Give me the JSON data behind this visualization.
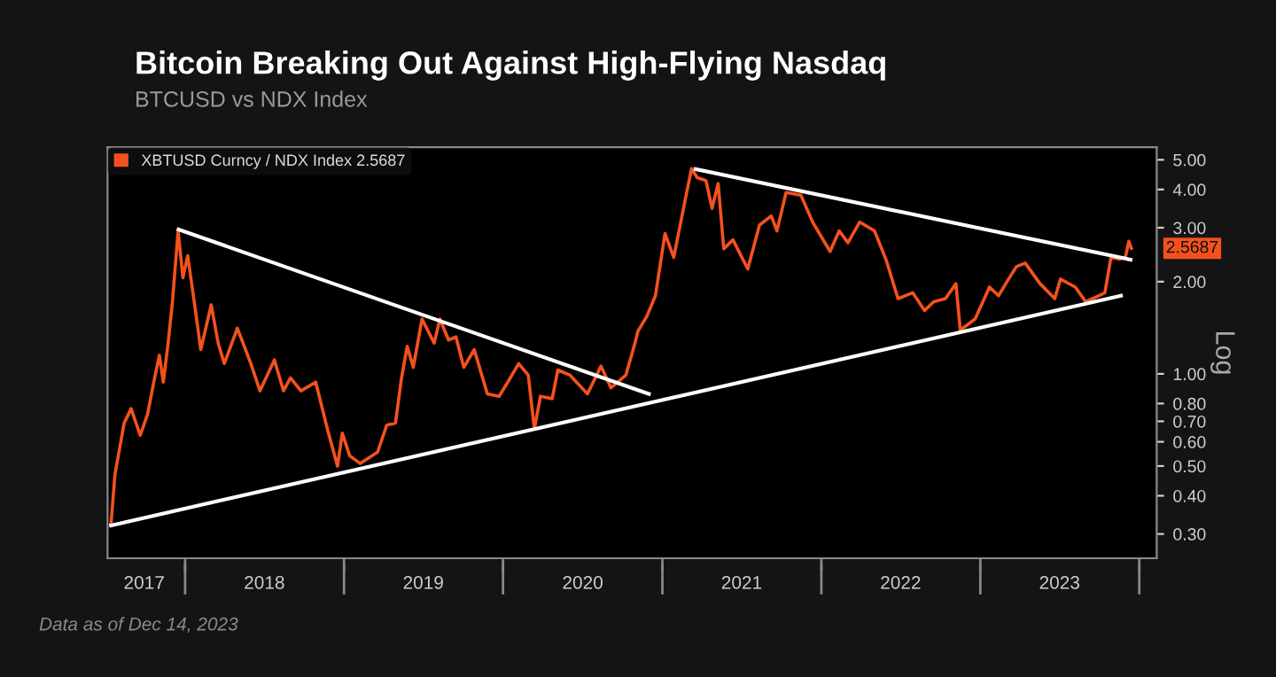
{
  "chart_data": {
    "type": "line",
    "title": "Bitcoin Breaking Out Against High-Flying Nasdaq",
    "subtitle": "BTCUSD vs NDX Index",
    "ylabel": "Log",
    "annotations": [
      "Data as of Dec 14, 2023",
      {
        "text": "2.5687",
        "x": "2023-12-14",
        "y": 2.5687
      }
    ],
    "log": true,
    "grid": false,
    "legend": "top left",
    "marker": "none",
    "line_style": "solid",
    "xlim": [
      "2017-07-07",
      "2024-02-10"
    ],
    "ylim": [
      0.25,
      5.5
    ],
    "xticks": [
      {
        "value": "2018-01-01",
        "label": null
      },
      {
        "value": "2019-01-01",
        "label": null
      },
      {
        "value": "2020-01-01",
        "label": null
      },
      {
        "value": "2021-01-01",
        "label": null
      },
      {
        "value": "2022-01-01",
        "label": null
      },
      {
        "value": "2023-01-01",
        "label": null
      },
      {
        "value": "2024-01-01",
        "label": null
      },
      {
        "value": "2017-09-29",
        "label": "2017"
      },
      {
        "value": "2018-07-02",
        "label": "2018"
      },
      {
        "value": "2019-07-02",
        "label": "2019"
      },
      {
        "value": "2020-07-02",
        "label": "2020"
      },
      {
        "value": "2021-07-02",
        "label": "2021"
      },
      {
        "value": "2022-07-02",
        "label": "2022"
      },
      {
        "value": "2023-07-02",
        "label": "2023"
      }
    ],
    "yticks": [
      {
        "value": 0.3,
        "label": "0.30"
      },
      {
        "value": 0.4,
        "label": "0.40"
      },
      {
        "value": 0.5,
        "label": "0.50"
      },
      {
        "value": 0.6,
        "label": "0.60"
      },
      {
        "value": 0.7,
        "label": "0.70"
      },
      {
        "value": 0.8,
        "label": "0.80"
      },
      {
        "value": 1,
        "label": "1.00"
      },
      {
        "value": 2,
        "label": "2.00"
      },
      {
        "value": 3,
        "label": "3.00"
      },
      {
        "value": 4,
        "label": "4.00"
      },
      {
        "value": 5,
        "label": "5.00"
      }
    ],
    "series": [
      {
        "name": "XBTUSD Curncy / NDX Index 2.5687",
        "color": "#f4511e",
        "x": [
          "2017-07-15",
          "2017-07-24",
          "2017-08-14",
          "2017-08-30",
          "2017-09-20",
          "2017-10-07",
          "2017-10-23",
          "2017-11-03",
          "2017-11-12",
          "2017-11-23",
          "2017-12-03",
          "2017-12-16",
          "2017-12-27",
          "2018-01-07",
          "2018-01-23",
          "2018-02-06",
          "2018-03-02",
          "2018-03-18",
          "2018-04-01",
          "2018-05-01",
          "2018-06-01",
          "2018-06-22",
          "2018-07-25",
          "2018-08-15",
          "2018-08-31",
          "2018-09-24",
          "2018-10-28",
          "2018-11-25",
          "2018-12-17",
          "2018-12-28",
          "2019-01-14",
          "2019-02-07",
          "2019-03-19",
          "2019-04-09",
          "2019-04-29",
          "2019-05-13",
          "2019-05-26",
          "2019-06-09",
          "2019-06-29",
          "2019-07-27",
          "2019-08-09",
          "2019-08-29",
          "2019-09-15",
          "2019-10-03",
          "2019-10-27",
          "2019-11-26",
          "2019-12-23",
          "2020-01-12",
          "2020-02-06",
          "2020-02-28",
          "2020-03-13",
          "2020-03-27",
          "2020-04-23",
          "2020-05-06",
          "2020-06-03",
          "2020-07-13",
          "2020-08-13",
          "2020-09-05",
          "2020-10-09",
          "2020-10-30",
          "2020-11-06",
          "2020-11-26",
          "2020-12-16",
          "2021-01-07",
          "2021-01-27",
          "2021-02-23",
          "2021-03-09",
          "2021-03-22",
          "2021-04-11",
          "2021-04-25",
          "2021-05-09",
          "2021-05-22",
          "2021-06-12",
          "2021-07-16",
          "2021-08-12",
          "2021-09-08",
          "2021-09-21",
          "2021-10-12",
          "2021-11-15",
          "2021-12-12",
          "2022-01-21",
          "2022-02-11",
          "2022-03-03",
          "2022-03-30",
          "2022-05-03",
          "2022-05-30",
          "2022-06-26",
          "2022-07-30",
          "2022-08-26",
          "2022-09-16",
          "2022-10-13",
          "2022-11-06",
          "2022-11-16",
          "2022-12-20",
          "2023-01-22",
          "2023-02-12",
          "2023-03-04",
          "2023-03-25",
          "2023-04-14",
          "2023-05-18",
          "2023-06-21",
          "2023-07-04",
          "2023-08-07",
          "2023-08-31",
          "2023-09-23",
          "2023-10-14",
          "2023-10-28",
          "2023-11-17",
          "2023-11-30",
          "2023-12-08",
          "2023-12-14"
        ],
        "values": [
          0.325,
          0.47,
          0.69,
          0.77,
          0.63,
          0.74,
          0.97,
          1.15,
          0.94,
          1.26,
          1.72,
          2.93,
          2.06,
          2.43,
          1.68,
          1.2,
          1.68,
          1.26,
          1.08,
          1.41,
          1.08,
          0.88,
          1.11,
          0.88,
          0.97,
          0.88,
          0.94,
          0.65,
          0.5,
          0.64,
          0.54,
          0.51,
          0.555,
          0.68,
          0.69,
          0.97,
          1.23,
          1.05,
          1.51,
          1.26,
          1.51,
          1.29,
          1.32,
          1.05,
          1.2,
          0.86,
          0.845,
          0.94,
          1.08,
          0.99,
          0.66,
          0.845,
          0.83,
          1.03,
          0.99,
          0.86,
          1.06,
          0.9,
          0.99,
          1.26,
          1.38,
          1.54,
          1.8,
          2.87,
          2.4,
          3.74,
          4.68,
          4.37,
          4.28,
          3.47,
          4.18,
          2.56,
          2.74,
          2.2,
          3.06,
          3.28,
          2.93,
          3.91,
          3.83,
          3.13,
          2.51,
          2.93,
          2.68,
          3.13,
          2.93,
          2.35,
          1.76,
          1.84,
          1.61,
          1.72,
          1.76,
          1.97,
          1.39,
          1.51,
          1.92,
          1.8,
          2.01,
          2.24,
          2.3,
          1.97,
          1.76,
          2.04,
          1.92,
          1.72,
          1.78,
          1.84,
          2.4,
          2.37,
          2.4,
          2.71,
          2.5687
        ]
      },
      {
        "color": "#ffffff",
        "x": [
          "2017-12-17",
          "2020-12-01"
        ],
        "values": [
          2.96,
          0.86
        ]
      },
      {
        "color": "#ffffff",
        "x": [
          "2017-07-15",
          "2023-11-20"
        ],
        "values": [
          0.32,
          1.8
        ]
      },
      {
        "color": "#ffffff",
        "x": [
          "2021-03-18",
          "2023-12-12"
        ],
        "values": [
          4.66,
          2.36
        ]
      }
    ]
  }
}
